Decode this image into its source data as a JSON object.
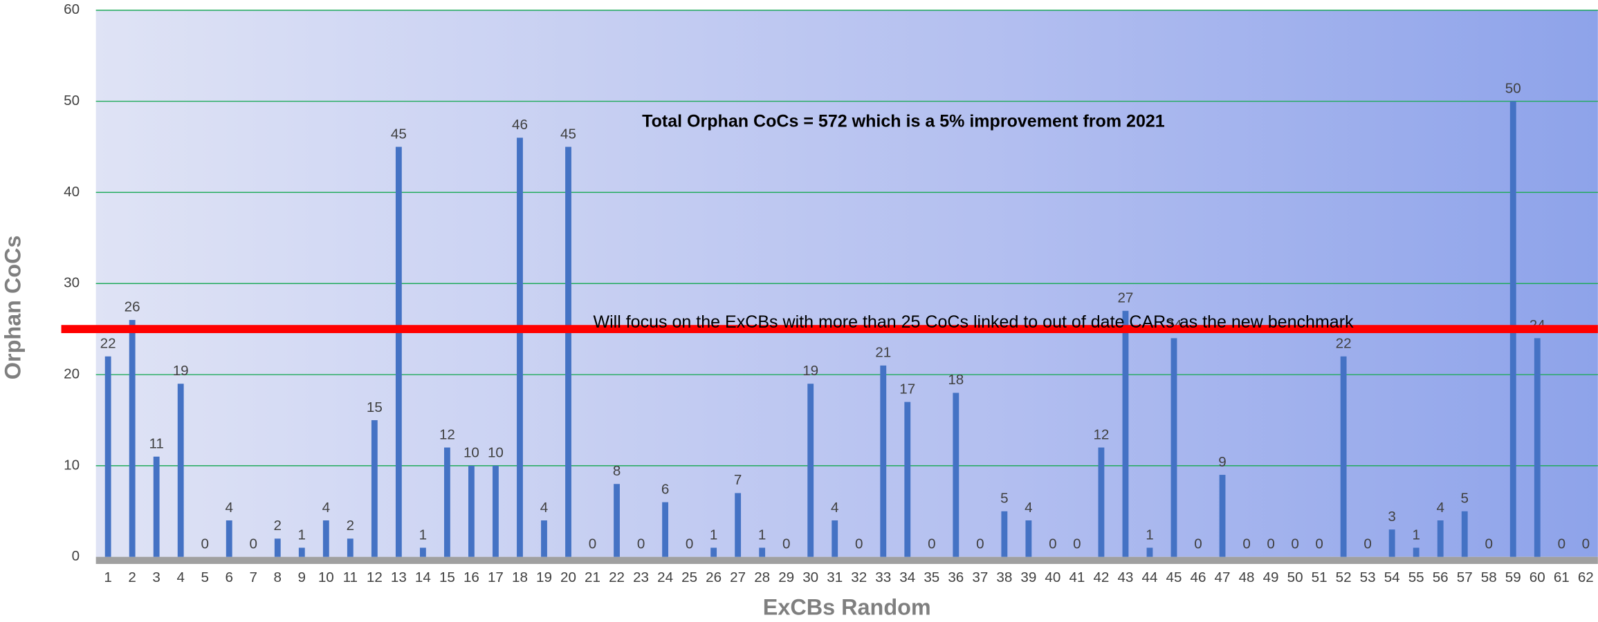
{
  "chart_data": {
    "type": "bar",
    "categories": [
      "1",
      "2",
      "3",
      "4",
      "5",
      "6",
      "7",
      "8",
      "9",
      "10",
      "11",
      "12",
      "13",
      "14",
      "15",
      "16",
      "17",
      "18",
      "19",
      "20",
      "21",
      "22",
      "23",
      "24",
      "25",
      "26",
      "27",
      "28",
      "29",
      "30",
      "31",
      "32",
      "33",
      "34",
      "35",
      "36",
      "37",
      "38",
      "39",
      "40",
      "41",
      "42",
      "43",
      "44",
      "45",
      "46",
      "47",
      "48",
      "49",
      "50",
      "51",
      "52",
      "53",
      "54",
      "55",
      "56",
      "57",
      "58",
      "59",
      "60",
      "61",
      "62"
    ],
    "values": [
      22,
      26,
      11,
      19,
      0,
      4,
      0,
      2,
      1,
      4,
      2,
      15,
      45,
      1,
      12,
      10,
      10,
      46,
      4,
      45,
      0,
      8,
      0,
      6,
      0,
      1,
      7,
      1,
      0,
      19,
      4,
      0,
      21,
      17,
      0,
      18,
      0,
      5,
      4,
      0,
      0,
      12,
      27,
      1,
      24,
      0,
      9,
      0,
      0,
      0,
      0,
      22,
      0,
      3,
      1,
      4,
      5,
      0,
      50,
      24,
      0,
      0
    ],
    "color": "#4472c4",
    "ylim": [
      0,
      60
    ],
    "yticks": [
      0,
      10,
      20,
      30,
      40,
      50,
      60
    ],
    "grid": true,
    "x_label": "ExCBs Random",
    "y_label": "Orphan CoCs",
    "annotations": [
      "Total Orphan CoCs = 572 which is a 5% improvement from 2021",
      "Will focus on the ExCBs with more than 25 CoCs linked to out of date CARs as the new benchmark"
    ],
    "reference_line": {
      "value": 25,
      "color": "#ff0000"
    }
  }
}
